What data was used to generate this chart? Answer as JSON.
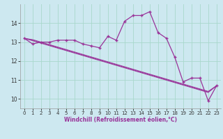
{
  "xlabel": "Windchill (Refroidissement éolien,°C)",
  "background_color": "#cde8f0",
  "grid_color": "#a8d8cc",
  "line_color": "#993399",
  "x_hours": [
    0,
    1,
    2,
    3,
    4,
    5,
    6,
    7,
    8,
    9,
    10,
    11,
    12,
    13,
    14,
    15,
    16,
    17,
    18,
    19,
    20,
    21,
    22,
    23
  ],
  "y_main": [
    13.2,
    12.9,
    13.0,
    13.0,
    13.1,
    13.1,
    13.1,
    12.9,
    12.8,
    12.7,
    13.3,
    13.1,
    14.1,
    14.4,
    14.4,
    14.6,
    13.5,
    13.2,
    12.2,
    10.9,
    11.1,
    11.1,
    9.9,
    10.7
  ],
  "y_reg1": [
    13.2,
    13.07,
    12.94,
    12.81,
    12.68,
    12.55,
    12.42,
    12.29,
    12.16,
    12.03,
    11.9,
    11.77,
    11.64,
    11.51,
    11.38,
    11.25,
    11.12,
    10.99,
    10.86,
    10.73,
    10.6,
    10.47,
    10.34,
    10.7
  ],
  "y_reg2": [
    13.2,
    13.1,
    12.97,
    12.84,
    12.71,
    12.58,
    12.45,
    12.32,
    12.19,
    12.06,
    11.93,
    11.8,
    11.67,
    11.54,
    11.41,
    11.28,
    11.15,
    11.02,
    10.89,
    10.76,
    10.63,
    10.5,
    10.37,
    10.7
  ],
  "y_reg3": [
    13.2,
    13.13,
    13.0,
    12.87,
    12.74,
    12.61,
    12.48,
    12.35,
    12.22,
    12.09,
    11.96,
    11.83,
    11.7,
    11.57,
    11.44,
    11.31,
    11.18,
    11.05,
    10.92,
    10.79,
    10.66,
    10.53,
    10.4,
    10.7
  ],
  "ylim": [
    9.5,
    15.0
  ],
  "xlim": [
    -0.5,
    23.5
  ],
  "ytick_values": [
    10,
    11,
    12,
    13,
    14
  ],
  "label_fontsize": 5.5,
  "tick_fontsize": 5.0,
  "label_color": "#993399"
}
